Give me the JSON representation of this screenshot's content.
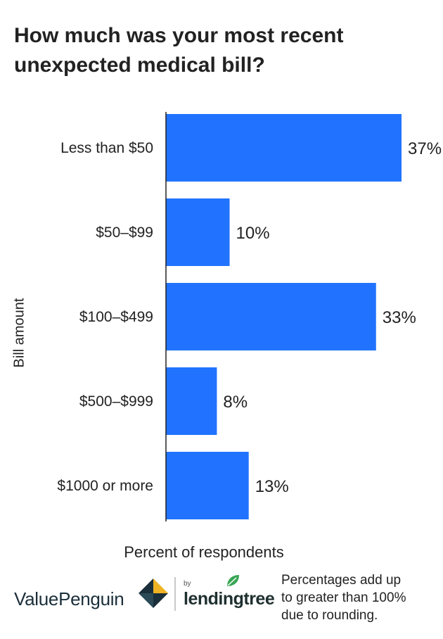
{
  "title_lines": [
    "How much was your most recent",
    "unexpected medical bill?"
  ],
  "chart_data": {
    "type": "bar",
    "orientation": "horizontal",
    "categories": [
      "Less than $50",
      "$50–$99",
      "$100–$499",
      "$500–$999",
      "$1000 or more"
    ],
    "values": [
      37,
      10,
      33,
      8,
      13
    ],
    "value_labels": [
      "37%",
      "10%",
      "33%",
      "8%",
      "13%"
    ],
    "xlabel": "Percent of respondents",
    "ylabel": "Bill amount",
    "xlim": [
      0,
      37
    ],
    "grid": false,
    "bar_color": "#2173ff"
  },
  "footer": {
    "brand_primary": "ValuePenguin",
    "brand_by": "by",
    "brand_secondary": "lendingtree",
    "note_lines": [
      "Percentages add up",
      "to greater than 100%",
      "due to rounding."
    ],
    "logo_colors": [
      "#1b2f3a",
      "#f0b323",
      "#2e8b57"
    ]
  }
}
